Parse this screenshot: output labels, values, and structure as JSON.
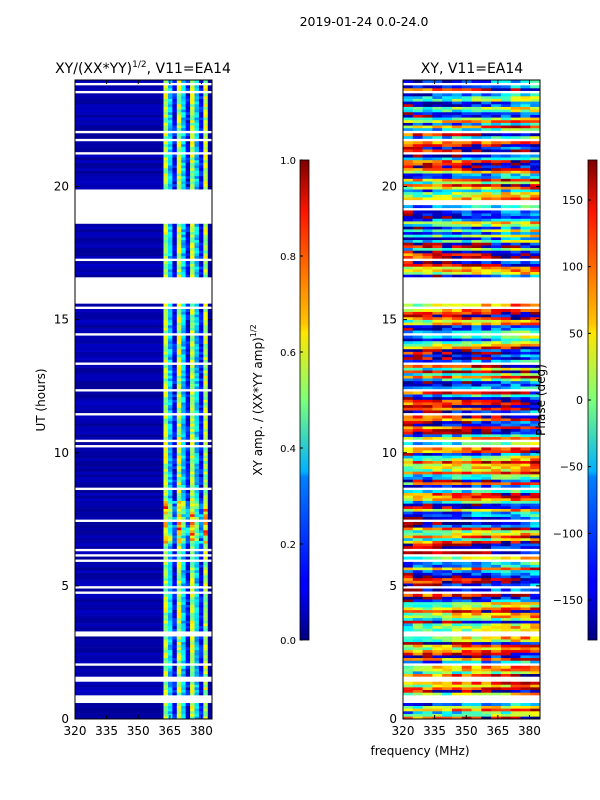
{
  "suptitle": "2019-01-24 0.0-24.0",
  "xlabel_common": "frequency (MHz)",
  "chart_data": [
    {
      "type": "heatmap",
      "title": "XY/(XX*YY)",
      "title_exponent": "1/2",
      "title_suffix": ", V11=EA14",
      "xlabel": "",
      "ylabel": "UT (hours)",
      "xlim": [
        320,
        385
      ],
      "ylim": [
        0,
        24
      ],
      "xticks": [
        320,
        335,
        350,
        365,
        380
      ],
      "yticks": [
        0,
        5,
        10,
        15,
        20
      ],
      "colorbar": {
        "label": "XY amp. / (XX*YY amp)",
        "label_exponent": "1/2",
        "range": [
          0.0,
          1.0
        ],
        "ticks": [
          "0.0",
          "0.2",
          "0.4",
          "0.6",
          "0.8",
          "1.0"
        ],
        "colormap": "jet"
      },
      "blank_time_ranges_hours": [
        [
          16.0,
          16.6
        ],
        [
          18.6,
          19.9
        ],
        [
          15.6,
          16.0
        ],
        [
          1.4,
          1.6
        ],
        [
          0.7,
          0.9
        ]
      ],
      "active_band_mhz": [
        362,
        383
      ],
      "background_value": 0.0
    },
    {
      "type": "heatmap",
      "title": "XY, V11=EA14",
      "xlabel": "",
      "ylabel": "",
      "xlim": [
        320,
        385
      ],
      "ylim": [
        0,
        24
      ],
      "xticks": [
        320,
        335,
        350,
        365,
        380
      ],
      "yticks": [
        0,
        5,
        10,
        15,
        20
      ],
      "colorbar": {
        "label": "Phase (deg)",
        "range": [
          -180,
          180
        ],
        "ticks": [
          "150",
          "100",
          "50",
          "0",
          "−50",
          "−100",
          "−150"
        ],
        "tick_values": [
          150,
          100,
          50,
          0,
          -50,
          -100,
          -150
        ],
        "colormap": "jet"
      },
      "blank_time_ranges_hours": [
        [
          16.0,
          16.6
        ],
        [
          15.6,
          16.0
        ],
        [
          1.4,
          1.6
        ],
        [
          0.7,
          0.9
        ]
      ],
      "value_range_deg": [
        -180,
        180
      ]
    }
  ]
}
